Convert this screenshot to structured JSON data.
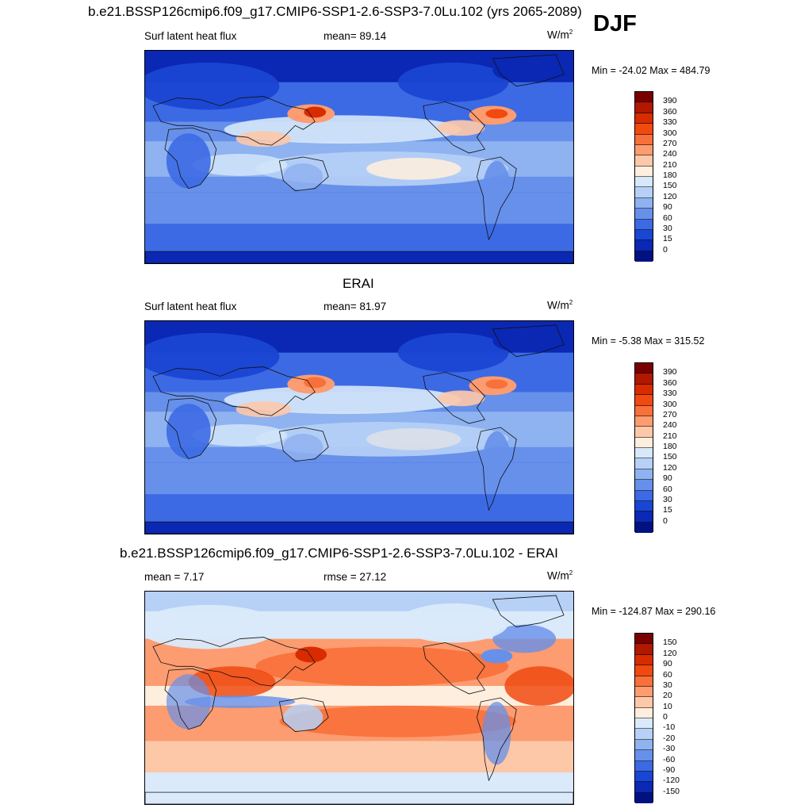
{
  "header": {
    "title": "b.e21.BSSP126cmip6.f09_g17.CMIP6-SSP1-2.6-SSP3-7.0Lu.102 (yrs 2065-2089)",
    "season": "DJF"
  },
  "panels": [
    {
      "name": "model",
      "heading": "",
      "left_label": "Surf latent heat flux",
      "center_label": "mean=  89.14",
      "units_base": "W/m",
      "units_exp": "2",
      "minmax": "Min = -24.02 Max = 484.79",
      "colorbar_labels": [
        "390",
        "360",
        "330",
        "300",
        "270",
        "240",
        "210",
        "180",
        "150",
        "120",
        "90",
        "60",
        "30",
        "15",
        "0"
      ]
    },
    {
      "name": "erai",
      "heading": "ERAI",
      "left_label": "Surf latent heat flux",
      "center_label": "mean=  81.97",
      "units_base": "W/m",
      "units_exp": "2",
      "minmax": "Min =  -5.38 Max = 315.52",
      "colorbar_labels": [
        "390",
        "360",
        "330",
        "300",
        "270",
        "240",
        "210",
        "180",
        "150",
        "120",
        "90",
        "60",
        "30",
        "15",
        "0"
      ]
    },
    {
      "name": "difference",
      "heading": "b.e21.BSSP126cmip6.f09_g17.CMIP6-SSP1-2.6-SSP3-7.0Lu.102 - ERAI",
      "left_label": "mean =   7.17",
      "center_label": "rmse =  27.12",
      "units_base": "W/m",
      "units_exp": "2",
      "minmax": "Min = -124.87 Max = 290.16",
      "colorbar_labels": [
        "150",
        "120",
        "90",
        "60",
        "30",
        "20",
        "10",
        "0",
        "-10",
        "-20",
        "-30",
        "-60",
        "-90",
        "-120",
        "-150"
      ]
    }
  ],
  "colors": {
    "sequential": [
      "#7a0000",
      "#b01800",
      "#d82c00",
      "#f04a10",
      "#f8703a",
      "#fc9c70",
      "#fdc8a8",
      "#fdeede",
      "#d6e8fa",
      "#b6d0f6",
      "#8fb2f0",
      "#6690ea",
      "#3c6ae4",
      "#1a46d4",
      "#0a28b4",
      "#001282"
    ],
    "diverging": [
      "#7a0000",
      "#b01800",
      "#d82c00",
      "#f04a10",
      "#f8703a",
      "#fc9c70",
      "#fdc8a8",
      "#fdeede",
      "#daeafb",
      "#b6d0f6",
      "#8fb2f0",
      "#6690ea",
      "#3c6ae4",
      "#1a46d4",
      "#0a28b4",
      "#001282"
    ]
  }
}
